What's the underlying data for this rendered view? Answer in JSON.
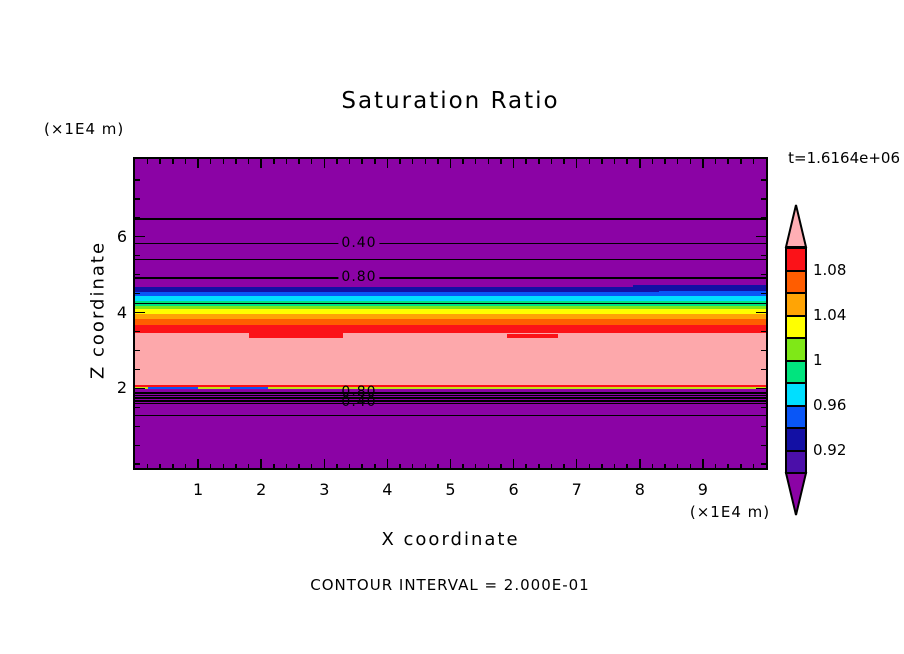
{
  "page": {
    "background": "#ffffff"
  },
  "chart": {
    "title": "Saturation Ratio",
    "time_label": "t=1.6164e+06",
    "footer": "CONTOUR INTERVAL = 2.000E-01"
  },
  "axes": {
    "x": {
      "label": "X coordinate",
      "unit": "(×1E4 m)",
      "range": [
        0,
        10
      ],
      "major_ticks": [
        1,
        2,
        3,
        4,
        5,
        6,
        7,
        8,
        9
      ],
      "minor_step": 0.2
    },
    "z": {
      "label": "Z coordinate",
      "unit": "(×1E4 m)",
      "range": [
        -0.1,
        8.05
      ],
      "major_ticks": [
        2,
        4,
        6
      ],
      "minor_step": 0.5
    }
  },
  "chart_data": {
    "type": "heatmap",
    "subtype": "filled-contour",
    "title": "Saturation Ratio",
    "time_annotation": "t=1.6164e+06",
    "contour_interval": "2.000E-01",
    "x_range": [
      0,
      10
    ],
    "z_range": [
      -0.1,
      8.05
    ],
    "axis_unit": "(×1E4 m)",
    "colorbar": {
      "orientation": "vertical",
      "labels": [
        {
          "text": "1.08",
          "boundary": 1
        },
        {
          "text": "1.04",
          "boundary": 3
        },
        {
          "text": "1",
          "boundary": 5
        },
        {
          "text": "0.96",
          "boundary": 7
        },
        {
          "text": "0.92",
          "boundary": 9
        }
      ],
      "segment_colors": [
        "#FB1218",
        "#FF5D00",
        "#FFA405",
        "#FFFF00",
        "#7FE817",
        "#00E47E",
        "#00DFFF",
        "#0956F7",
        "#1310A4",
        "#4B0FA9"
      ],
      "arrow_top_color": "#FFAEB4",
      "arrow_bottom_color": "#8B03A5"
    },
    "bands": [
      {
        "color": "#8B03A5",
        "z_top": 8.05,
        "z_bottom": 4.67
      },
      {
        "color": "#1310A4",
        "z_top": 4.67,
        "z_bottom": 4.55
      },
      {
        "color": "#0956F7",
        "z_top": 4.55,
        "z_bottom": 4.44
      },
      {
        "color": "#00DFFF",
        "z_top": 4.44,
        "z_bottom": 4.31
      },
      {
        "color": "#00E47E",
        "z_top": 4.31,
        "z_bottom": 4.18
      },
      {
        "color": "#7FE817",
        "z_top": 4.18,
        "z_bottom": 4.1
      },
      {
        "color": "#FFFF00",
        "z_top": 4.1,
        "z_bottom": 3.97
      },
      {
        "color": "#FFA405",
        "z_top": 3.97,
        "z_bottom": 3.84
      },
      {
        "color": "#FF5D00",
        "z_top": 3.84,
        "z_bottom": 3.68
      },
      {
        "color": "#FB1218",
        "z_top": 3.68,
        "z_bottom": 3.45
      },
      {
        "color": "#FDA8AB",
        "z_top": 3.45,
        "z_bottom": 2.08
      },
      {
        "color": "#FB1218",
        "z_top": 2.08,
        "z_bottom": 2.04
      },
      {
        "color": "#C3E414",
        "z_top": 2.04,
        "z_bottom": 1.99
      },
      {
        "color": "#8B03A5",
        "z_top": 1.99,
        "z_bottom": -0.1
      }
    ],
    "patches": [
      {
        "color": "#1310A4",
        "x0": 7.9,
        "x1": 10,
        "z_top": 4.73,
        "z_bottom": 4.58
      },
      {
        "color": "#0956F7",
        "x0": 8.3,
        "x1": 10,
        "z_top": 4.58,
        "z_bottom": 4.5
      },
      {
        "color": "#FB1218",
        "x0": 1.8,
        "x1": 3.3,
        "z_top": 3.46,
        "z_bottom": 3.33
      },
      {
        "color": "#FB1218",
        "x0": 5.9,
        "x1": 6.7,
        "z_top": 3.43,
        "z_bottom": 3.34
      },
      {
        "color": "#0956F7",
        "x0": 0.2,
        "x1": 1.0,
        "z_top": 2.04,
        "z_bottom": 1.99
      },
      {
        "color": "#0956F7",
        "x0": 1.5,
        "x1": 2.1,
        "z_top": 2.04,
        "z_bottom": 1.99
      }
    ],
    "contour_lines": [
      {
        "value": 0.2,
        "z": 6.49
      },
      {
        "value": 0.4,
        "z": 5.84
      },
      {
        "value": 0.6,
        "z": 5.42
      },
      {
        "value": 0.8,
        "z": 4.93
      },
      {
        "value": 1.0,
        "z": 4.26
      },
      {
        "value": 1.0,
        "z": 1.9
      },
      {
        "value": 0.8,
        "z": 1.83
      },
      {
        "value": 0.6,
        "z": 1.76
      },
      {
        "value": 0.4,
        "z": 1.69
      },
      {
        "value": 0.2,
        "z": 1.62
      },
      {
        "value": null,
        "z": 1.3
      }
    ],
    "contour_labels": [
      {
        "text": "0.40",
        "x": 3.55,
        "z": 5.84,
        "opaque": true
      },
      {
        "text": "0.80",
        "x": 3.55,
        "z": 4.93,
        "opaque": true
      },
      {
        "text": "0.80",
        "x": 3.55,
        "z": 1.91,
        "opaque": false
      },
      {
        "text": "0.40",
        "x": 3.55,
        "z": 1.63,
        "opaque": false
      }
    ]
  }
}
